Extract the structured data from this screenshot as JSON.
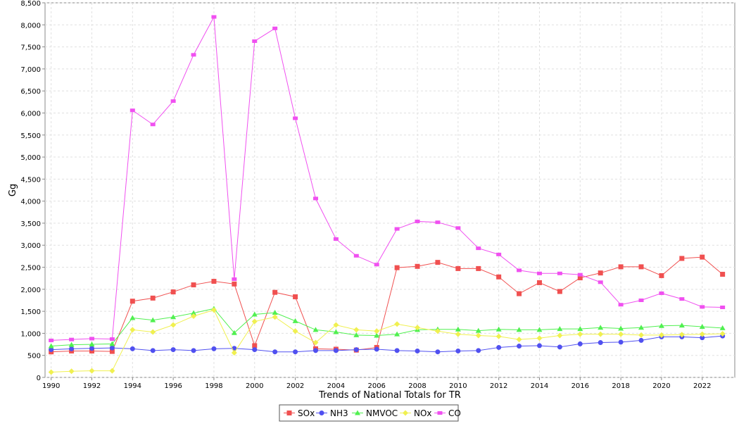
{
  "chart_data": {
    "type": "line",
    "title": "",
    "xlabel": "Trends of National Totals for TR",
    "ylabel": "Gg",
    "x": [
      1990,
      1991,
      1992,
      1993,
      1994,
      1995,
      1996,
      1997,
      1998,
      1999,
      2000,
      2001,
      2002,
      2003,
      2004,
      2005,
      2006,
      2007,
      2008,
      2009,
      2010,
      2011,
      2012,
      2013,
      2014,
      2015,
      2016,
      2017,
      2018,
      2019,
      2020,
      2021,
      2022,
      2023
    ],
    "xlim": [
      1989.7,
      2023.6
    ],
    "ylim": [
      0,
      8500
    ],
    "x_ticks": [
      "1990",
      "1992",
      "1994",
      "1996",
      "1998",
      "2000",
      "2002",
      "2004",
      "2006",
      "2008",
      "2010",
      "2012",
      "2014",
      "2016",
      "2018",
      "2020",
      "2022"
    ],
    "y_ticks": [
      "0",
      "500",
      "1,000",
      "1,500",
      "2,000",
      "2,500",
      "3,000",
      "3,500",
      "4,000",
      "4,500",
      "5,000",
      "5,500",
      "6,000",
      "6,500",
      "7,000",
      "7,500",
      "8,000",
      "8,500"
    ],
    "grid": true,
    "legend_position": "bottom-center",
    "series": [
      {
        "name": "SOx",
        "color": "#f05050",
        "marker": "square",
        "values": [
          580,
          600,
          600,
          590,
          1730,
          1800,
          1940,
          2100,
          2180,
          2120,
          720,
          1930,
          1830,
          650,
          640,
          620,
          680,
          2490,
          2520,
          2610,
          2470,
          2470,
          2280,
          1900,
          2150,
          1950,
          2260,
          2370,
          2510,
          2510,
          2310,
          2700,
          2730,
          2340
        ]
      },
      {
        "name": "NH3",
        "color": "#5050f0",
        "marker": "circle",
        "values": [
          630,
          650,
          660,
          670,
          650,
          610,
          630,
          610,
          650,
          660,
          630,
          580,
          580,
          610,
          610,
          630,
          640,
          610,
          600,
          580,
          600,
          610,
          680,
          710,
          720,
          690,
          760,
          790,
          800,
          840,
          920,
          920,
          900,
          940
        ]
      },
      {
        "name": "NMVOC",
        "color": "#50f050",
        "marker": "triangle",
        "values": [
          710,
          740,
          750,
          760,
          1350,
          1300,
          1370,
          1460,
          1560,
          1010,
          1430,
          1470,
          1280,
          1080,
          1030,
          960,
          950,
          980,
          1080,
          1090,
          1090,
          1060,
          1090,
          1080,
          1080,
          1100,
          1100,
          1130,
          1110,
          1130,
          1170,
          1180,
          1150,
          1120
        ]
      },
      {
        "name": "NOx",
        "color": "#f0f050",
        "marker": "diamond",
        "values": [
          120,
          140,
          150,
          150,
          1080,
          1030,
          1190,
          1390,
          1530,
          560,
          1270,
          1370,
          1050,
          790,
          1190,
          1080,
          1050,
          1210,
          1130,
          1050,
          980,
          950,
          930,
          860,
          890,
          950,
          980,
          980,
          980,
          960,
          960,
          970,
          980,
          990
        ]
      },
      {
        "name": "CO",
        "color": "#f050f0",
        "marker": "rect",
        "values": [
          840,
          860,
          880,
          870,
          6060,
          5740,
          6270,
          7320,
          8180,
          2230,
          7630,
          7920,
          5880,
          4060,
          3140,
          2760,
          2560,
          3370,
          3540,
          3520,
          3390,
          2930,
          2790,
          2430,
          2360,
          2360,
          2330,
          2160,
          1650,
          1750,
          1910,
          1780,
          1600,
          1590
        ]
      }
    ]
  }
}
